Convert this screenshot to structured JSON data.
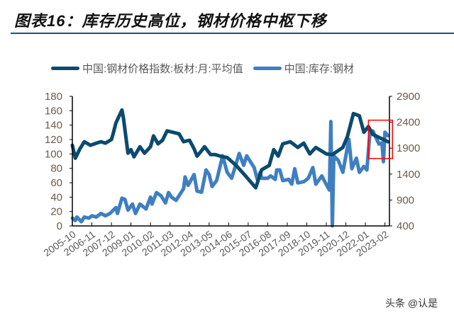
{
  "title": "图表16：库存历史高位，钢材价格中枢下移",
  "watermark": "头条 @认是",
  "chart_data": {
    "type": "line",
    "title": "图表16：库存历史高位，钢材价格中枢下移",
    "xlabel": "",
    "ylabel": "",
    "grid": false,
    "legend_position": "top",
    "x_tick_labels": [
      "2005-10",
      "2006-11",
      "2007-12",
      "2009-01",
      "2010-02",
      "2011-03",
      "2012-04",
      "2013-05",
      "2014-06",
      "2015-07",
      "2016-08",
      "2017-09",
      "2018-10",
      "2019-11",
      "2020-12",
      "2022-01",
      "2023-02"
    ],
    "xlim": [
      "2005-10",
      "2023-05"
    ],
    "y_left": {
      "ylim": [
        0,
        180
      ],
      "ticks": [
        0,
        20,
        40,
        60,
        80,
        100,
        120,
        140,
        160,
        180
      ]
    },
    "y_right": {
      "ylim": [
        400,
        2900
      ],
      "ticks": [
        400,
        900,
        1400,
        1900,
        2400,
        2900
      ]
    },
    "highlight_box": {
      "x": [
        "2022-03",
        "2023-07"
      ],
      "y_right": [
        1700,
        2440
      ],
      "color": "#ff0000"
    },
    "series": [
      {
        "name": "中国:钢材价格指数:板材:月:平均值",
        "axis": "left",
        "color": "#0b4a6e",
        "points": [
          [
            "2005-10",
            112
          ],
          [
            "2005-12",
            94
          ],
          [
            "2006-03",
            107
          ],
          [
            "2006-06",
            117
          ],
          [
            "2006-10",
            112
          ],
          [
            "2007-02",
            115
          ],
          [
            "2007-05",
            117
          ],
          [
            "2007-08",
            115
          ],
          [
            "2007-12",
            120
          ],
          [
            "2008-01",
            127
          ],
          [
            "2008-03",
            143
          ],
          [
            "2008-07",
            161
          ],
          [
            "2008-08",
            150
          ],
          [
            "2008-11",
            101
          ],
          [
            "2009-01",
            106
          ],
          [
            "2009-03",
            96
          ],
          [
            "2009-07",
            110
          ],
          [
            "2009-10",
            101
          ],
          [
            "2010-02",
            110
          ],
          [
            "2010-04",
            125
          ],
          [
            "2010-07",
            114
          ],
          [
            "2010-10",
            119
          ],
          [
            "2011-01",
            132
          ],
          [
            "2011-05",
            130
          ],
          [
            "2011-09",
            128
          ],
          [
            "2011-12",
            117
          ],
          [
            "2012-04",
            119
          ],
          [
            "2012-07",
            107
          ],
          [
            "2012-09",
            97
          ],
          [
            "2012-11",
            102
          ],
          [
            "2013-02",
            110
          ],
          [
            "2013-06",
            99
          ],
          [
            "2013-09",
            99
          ],
          [
            "2014-02",
            96
          ],
          [
            "2014-05",
            95
          ],
          [
            "2014-11",
            84
          ],
          [
            "2015-05",
            70
          ],
          [
            "2015-12",
            53
          ],
          [
            "2016-04",
            78
          ],
          [
            "2016-09",
            84
          ],
          [
            "2016-12",
            106
          ],
          [
            "2017-03",
            97
          ],
          [
            "2017-06",
            114
          ],
          [
            "2017-11",
            117
          ],
          [
            "2018-04",
            109
          ],
          [
            "2018-08",
            115
          ],
          [
            "2018-12",
            100
          ],
          [
            "2019-04",
            109
          ],
          [
            "2019-11",
            100
          ],
          [
            "2020-03",
            99
          ],
          [
            "2020-10",
            109
          ],
          [
            "2021-01",
            124
          ],
          [
            "2021-05",
            156
          ],
          [
            "2021-09",
            153
          ],
          [
            "2021-12",
            130
          ],
          [
            "2022-03",
            138
          ],
          [
            "2022-06",
            127
          ],
          [
            "2022-11",
            122
          ],
          [
            "2023-04",
            117
          ]
        ]
      },
      {
        "name": "中国:库存:钢材",
        "axis": "right",
        "color": "#3f7fc1",
        "points": [
          [
            "2005-10",
            550
          ],
          [
            "2005-12",
            504
          ],
          [
            "2006-01",
            572
          ],
          [
            "2006-04",
            482
          ],
          [
            "2006-06",
            572
          ],
          [
            "2006-09",
            550
          ],
          [
            "2006-11",
            595
          ],
          [
            "2007-02",
            572
          ],
          [
            "2007-05",
            640
          ],
          [
            "2007-08",
            595
          ],
          [
            "2007-11",
            640
          ],
          [
            "2008-03",
            754
          ],
          [
            "2008-04",
            640
          ],
          [
            "2008-07",
            936
          ],
          [
            "2008-09",
            914
          ],
          [
            "2008-11",
            705
          ],
          [
            "2009-02",
            822
          ],
          [
            "2009-04",
            640
          ],
          [
            "2009-07",
            822
          ],
          [
            "2009-11",
            727
          ],
          [
            "2010-02",
            956
          ],
          [
            "2010-03",
            822
          ],
          [
            "2010-06",
            1044
          ],
          [
            "2010-09",
            982
          ],
          [
            "2010-12",
            844
          ],
          [
            "2011-02",
            1044
          ],
          [
            "2011-04",
            956
          ],
          [
            "2011-07",
            893
          ],
          [
            "2011-09",
            982
          ],
          [
            "2011-12",
            1118
          ],
          [
            "2012-01",
            1345
          ],
          [
            "2012-03",
            1181
          ],
          [
            "2012-07",
            1391
          ],
          [
            "2012-09",
            1072
          ],
          [
            "2012-12",
            1050
          ],
          [
            "2013-03",
            1481
          ],
          [
            "2013-05",
            1391
          ],
          [
            "2013-07",
            1159
          ],
          [
            "2013-10",
            1276
          ],
          [
            "2014-02",
            1753
          ],
          [
            "2014-05",
            1436
          ],
          [
            "2014-08",
            1320
          ],
          [
            "2015-01",
            1798
          ],
          [
            "2015-04",
            1570
          ],
          [
            "2015-06",
            1752
          ],
          [
            "2015-09",
            1616
          ],
          [
            "2015-11",
            1525
          ],
          [
            "2016-01",
            1297
          ],
          [
            "2016-03",
            1434
          ],
          [
            "2016-04",
            1320
          ],
          [
            "2016-08",
            1320
          ],
          [
            "2016-10",
            1365
          ],
          [
            "2017-01",
            1297
          ],
          [
            "2017-02",
            1479
          ],
          [
            "2017-04",
            1479
          ],
          [
            "2017-06",
            1274
          ],
          [
            "2017-10",
            1297
          ],
          [
            "2017-12",
            1206
          ],
          [
            "2018-02",
            1502
          ],
          [
            "2018-04",
            1229
          ],
          [
            "2018-08",
            1252
          ],
          [
            "2018-11",
            1320
          ],
          [
            "2019-02",
            1525
          ],
          [
            "2019-04",
            1206
          ],
          [
            "2019-08",
            1365
          ],
          [
            "2019-10",
            1252
          ],
          [
            "2020-01",
            1092
          ],
          [
            "2020-02",
            2413
          ],
          [
            "2020-03",
            400
          ],
          [
            "2020-04",
            1752
          ],
          [
            "2020-07",
            1661
          ],
          [
            "2020-10",
            1434
          ],
          [
            "2021-02",
            2071
          ],
          [
            "2021-04",
            1502
          ],
          [
            "2021-07",
            1707
          ],
          [
            "2021-09",
            1434
          ],
          [
            "2021-12",
            1548
          ],
          [
            "2022-02",
            1479
          ],
          [
            "2022-04",
            2208
          ],
          [
            "2022-06",
            2230
          ],
          [
            "2022-10",
            1980
          ],
          [
            "2022-12",
            2003
          ],
          [
            "2023-01",
            1639
          ],
          [
            "2023-02",
            2208
          ],
          [
            "2023-04",
            2140
          ]
        ]
      }
    ]
  }
}
